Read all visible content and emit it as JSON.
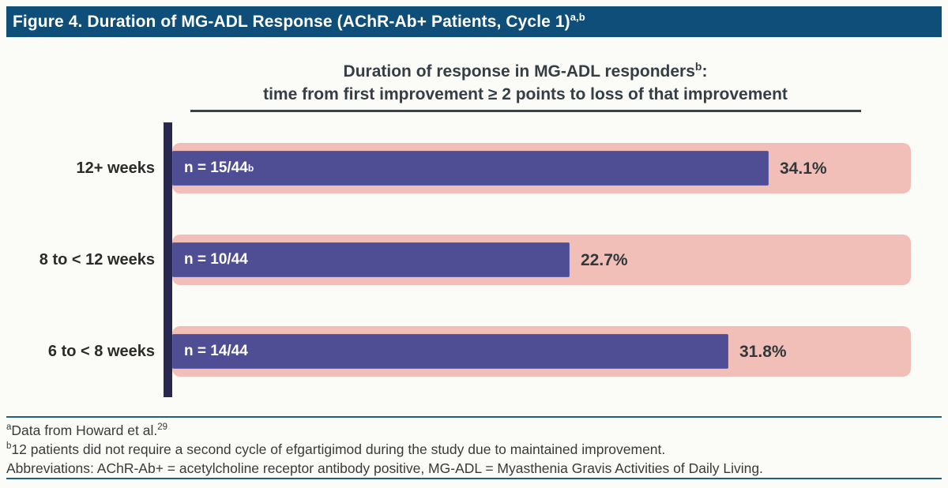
{
  "colors": {
    "header_bg": "#0F4E78",
    "bar_purple": "#4F4D94",
    "track_pink": "#F1BFB8",
    "axis_navy": "#27274F",
    "rule_blue": "#1F5E88",
    "title_dark": "#363E45",
    "text_white": "#FFFFFF"
  },
  "header": {
    "title": "Figure 4. Duration of MG-ADL Response (AChR-Ab+ Patients, Cycle 1)",
    "sup": "a,b"
  },
  "chart_title": {
    "line1": "Duration of response in MG-ADL responders",
    "line1_sup": "b",
    "line1_end": ":",
    "line2": "time from first improvement ≥ 2 points to loss of that improvement"
  },
  "rows": [
    {
      "category": "12+ weeks",
      "n_label": "n = 15/44",
      "n_sup": "b",
      "pct": "34.1%"
    },
    {
      "category": "8 to < 12 weeks",
      "n_label": "n = 10/44",
      "n_sup": "",
      "pct": "22.7%"
    },
    {
      "category": "6 to < 8 weeks",
      "n_label": "n = 14/44",
      "n_sup": "",
      "pct": "31.8%"
    }
  ],
  "chart_data": {
    "type": "bar",
    "orientation": "horizontal",
    "title": "Duration of response in MG-ADL responders(b): time from first improvement ≥ 2 points to loss of that improvement",
    "categories": [
      "12+ weeks",
      "8 to < 12 weeks",
      "6 to < 8 weeks"
    ],
    "values": [
      34.1,
      22.7,
      31.8
    ],
    "value_unit": "%",
    "bar_labels": [
      "n = 15/44(b)",
      "n = 10/44",
      "n = 14/44"
    ],
    "xlim": [
      0,
      42.2
    ],
    "grid": false,
    "legend": false
  },
  "footnotes": [
    {
      "sup": "a",
      "text": "Data from Howard et al.",
      "end_sup": "29"
    },
    {
      "sup": "b",
      "text": "12 patients did not require a second cycle of efgartigimod during the study due to maintained improvement.",
      "end_sup": ""
    },
    {
      "sup": "",
      "text": "Abbreviations: AChR-Ab+ = acetylcholine receptor antibody positive, MG-ADL = Myasthenia Gravis Activities of Daily Living.",
      "end_sup": ""
    }
  ]
}
